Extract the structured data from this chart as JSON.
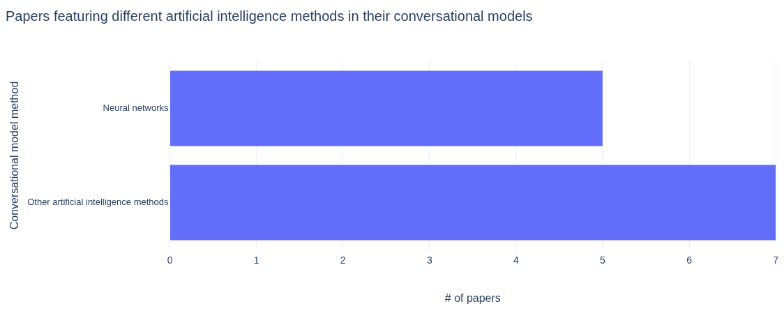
{
  "chart_data": {
    "type": "bar",
    "orientation": "horizontal",
    "title": "Papers featuring different artificial intelligence methods in their conversational models",
    "xlabel": "# of papers",
    "ylabel": "Conversational model method",
    "categories": [
      "Neural networks",
      "Other artificial intelligence methods"
    ],
    "values": [
      5,
      7
    ],
    "color": "#636efa",
    "xlim": [
      0,
      7
    ],
    "xticks": [
      0,
      1,
      2,
      3,
      4,
      5,
      6,
      7
    ],
    "grid": "x",
    "legend": false
  }
}
